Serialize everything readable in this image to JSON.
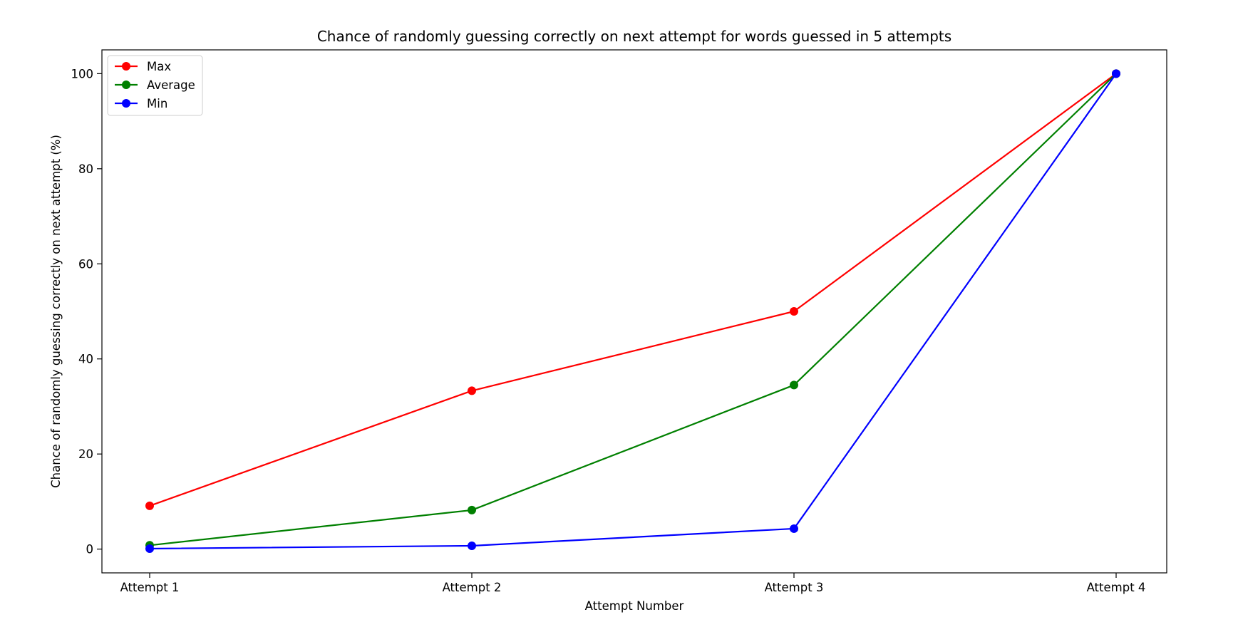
{
  "chart_data": {
    "type": "line",
    "title": "Chance of randomly guessing correctly on next attempt for words guessed in 5 attempts",
    "xlabel": "Attempt Number",
    "ylabel": "Chance of randomly guessing correctly on next attempt (%)",
    "categories": [
      "Attempt 1",
      "Attempt 2",
      "Attempt 3",
      "Attempt 4"
    ],
    "ylim": [
      -5,
      105
    ],
    "yticks": [
      0,
      20,
      40,
      60,
      80,
      100
    ],
    "grid": false,
    "legend_position": "top-left",
    "series": [
      {
        "name": "Max",
        "color": "#ff0000",
        "values": [
          9.1,
          33.3,
          50.0,
          100.0
        ]
      },
      {
        "name": "Average",
        "color": "#008000",
        "values": [
          0.8,
          8.2,
          34.5,
          100.0
        ]
      },
      {
        "name": "Min",
        "color": "#0000ff",
        "values": [
          0.1,
          0.7,
          4.3,
          100.0
        ]
      }
    ]
  }
}
